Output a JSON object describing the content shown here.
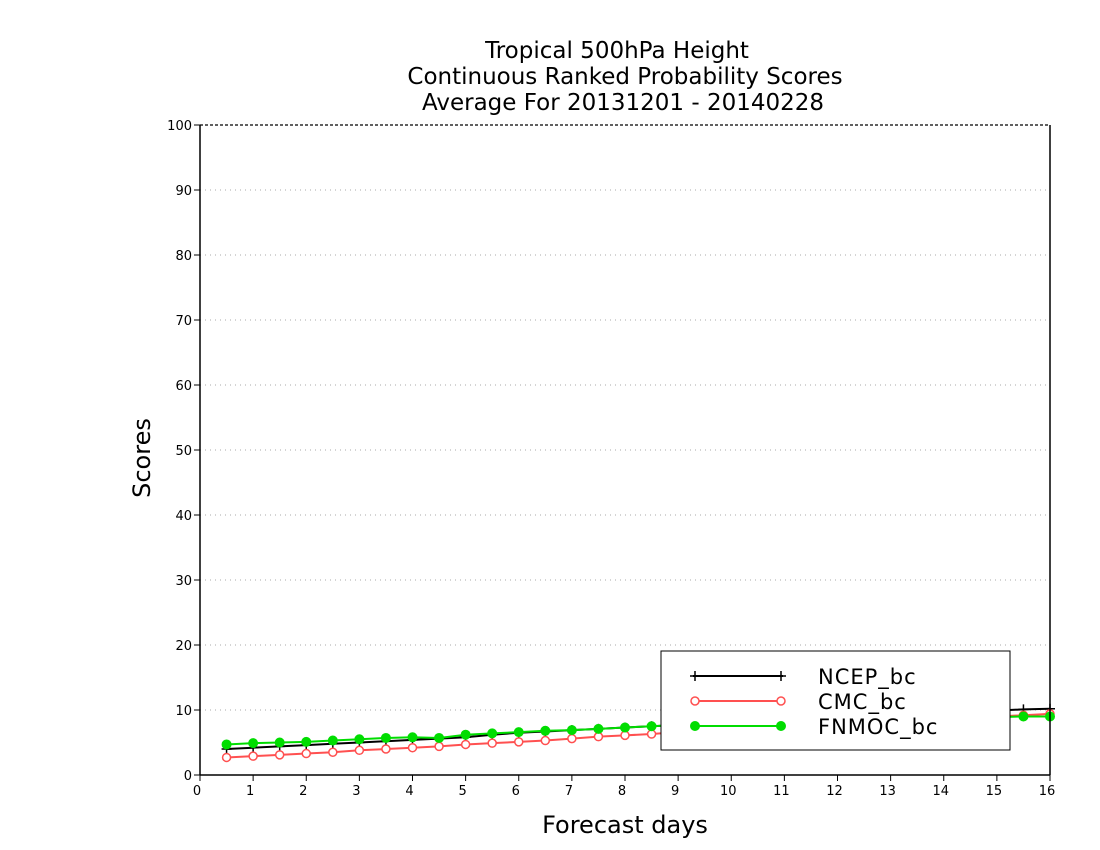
{
  "chart_data": {
    "type": "line",
    "title": [
      "Tropical 500hPa Height",
      "Continuous Ranked Probability Scores",
      "Average For 20131201 - 20140228"
    ],
    "xlabel": "Forecast days",
    "ylabel": "Scores",
    "xlim": [
      0,
      16
    ],
    "ylim": [
      0,
      100
    ],
    "xticks": [
      0,
      1,
      2,
      3,
      4,
      5,
      6,
      7,
      8,
      9,
      10,
      11,
      12,
      13,
      14,
      15,
      16
    ],
    "yticks": [
      0,
      10,
      20,
      30,
      40,
      50,
      60,
      70,
      80,
      90,
      100
    ],
    "grid": true,
    "legend_position": "bottom-right",
    "x": [
      0.5,
      1,
      1.5,
      2,
      2.5,
      3,
      3.5,
      4,
      4.5,
      5,
      5.5,
      6,
      6.5,
      7,
      7.5,
      8,
      8.5,
      9,
      9.5,
      10,
      10.5,
      11,
      11.5,
      12,
      12.5,
      13,
      13.5,
      14,
      14.5,
      15,
      15.5,
      16
    ],
    "series": [
      {
        "name": "NCEP_bc",
        "color": "#000000",
        "marker": "plus",
        "values": [
          4.0,
          4.2,
          4.4,
          4.6,
          4.8,
          5.0,
          5.2,
          5.4,
          5.6,
          5.8,
          6.2,
          6.5,
          6.7,
          6.9,
          7.1,
          7.3,
          7.5,
          7.7,
          7.9,
          8.1,
          8.3,
          8.5,
          8.7,
          8.9,
          9.1,
          9.3,
          9.5,
          9.6,
          9.8,
          9.9,
          10.1,
          10.2
        ]
      },
      {
        "name": "CMC_bc",
        "color": "#ff5050",
        "marker": "open-circle",
        "values": [
          2.7,
          2.9,
          3.1,
          3.3,
          3.5,
          3.8,
          4.0,
          4.2,
          4.4,
          4.7,
          4.9,
          5.1,
          5.3,
          5.6,
          5.9,
          6.1,
          6.3,
          6.6,
          6.8,
          7.0,
          7.2,
          7.4,
          7.6,
          7.8,
          8.0,
          8.2,
          8.4,
          8.6,
          8.8,
          9.0,
          9.2,
          9.4
        ]
      },
      {
        "name": "FNMOC_bc",
        "color": "#00dd00",
        "marker": "filled-circle",
        "values": [
          4.7,
          4.9,
          5.0,
          5.1,
          5.3,
          5.5,
          5.7,
          5.8,
          5.7,
          6.2,
          6.4,
          6.6,
          6.8,
          6.9,
          7.1,
          7.3,
          7.5,
          7.7,
          7.8,
          8.0,
          8.1,
          8.2,
          8.3,
          8.4,
          8.5,
          8.6,
          8.7,
          8.8,
          8.9,
          8.9,
          9.0,
          9.0
        ]
      }
    ]
  }
}
